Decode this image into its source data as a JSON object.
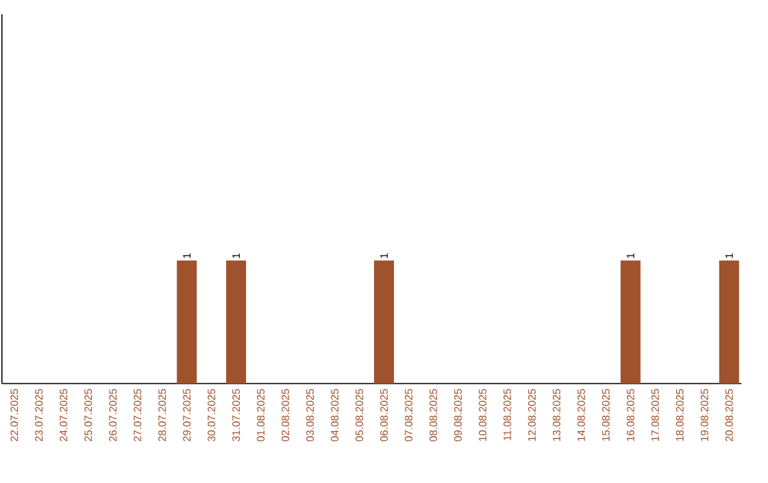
{
  "chart_data": {
    "type": "bar",
    "categories": [
      "22.07.2025",
      "23.07.2025",
      "24.07.2025",
      "25.07.2025",
      "26.07.2025",
      "27.07.2025",
      "28.07.2025",
      "29.07.2025",
      "30.07.2025",
      "31.07.2025",
      "01.08.2025",
      "02.08.2025",
      "03.08.2025",
      "04.08.2025",
      "05.08.2025",
      "06.08.2025",
      "07.08.2025",
      "08.08.2025",
      "09.08.2025",
      "10.08.2025",
      "11.08.2025",
      "12.08.2025",
      "13.08.2025",
      "14.08.2025",
      "15.08.2025",
      "16.08.2025",
      "17.08.2025",
      "18.08.2025",
      "19.08.2025",
      "20.08.2025"
    ],
    "values": [
      0,
      0,
      0,
      0,
      0,
      0,
      0,
      1,
      0,
      1,
      0,
      0,
      0,
      0,
      0,
      1,
      0,
      0,
      0,
      0,
      0,
      0,
      0,
      0,
      0,
      1,
      0,
      0,
      0,
      1
    ],
    "value_labels": [
      null,
      null,
      null,
      null,
      null,
      null,
      null,
      "1",
      null,
      "1",
      null,
      null,
      null,
      null,
      null,
      "1",
      null,
      null,
      null,
      null,
      null,
      null,
      null,
      null,
      null,
      "1",
      null,
      null,
      null,
      "1"
    ],
    "color": "#a0522d",
    "ylim": [
      0,
      3
    ],
    "tick_labels": "x",
    "grid": false
  }
}
